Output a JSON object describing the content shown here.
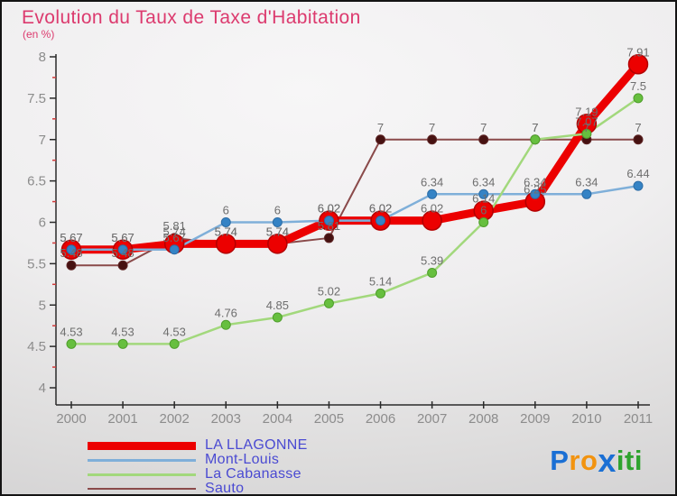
{
  "title": "Evolution du Taux de Taxe d'Habitation",
  "subtitle": "(en %)",
  "chart_data": {
    "type": "line",
    "x": [
      2000,
      2001,
      2002,
      2003,
      2004,
      2005,
      2006,
      2007,
      2008,
      2009,
      2010,
      2011
    ],
    "xlabel": "",
    "ylabel": "en %",
    "ylim": [
      4,
      8
    ],
    "ytick_step_major": 0.5,
    "ytick_step_minor": 0.25,
    "grid": false,
    "legend_position": "bottom-left",
    "series": [
      {
        "name": "LA LLAGONNE",
        "values": [
          5.67,
          5.67,
          5.74,
          5.74,
          5.74,
          6.02,
          6.02,
          6.02,
          6.14,
          6.25,
          7.19,
          7.91
        ],
        "color": "#ec0000",
        "marker_fill": "#ec0000",
        "marker_stroke": "#b30000",
        "line_width": 9,
        "marker_radius": 10.5,
        "swatch_h": 9
      },
      {
        "name": "Mont-Louis",
        "values": [
          5.67,
          5.67,
          5.67,
          6,
          6,
          6.02,
          6.02,
          6.34,
          6.34,
          6.34,
          6.34,
          6.44
        ],
        "color": "#7fafd9",
        "marker_fill": "#3583c5",
        "marker_stroke": "#2d6da6",
        "line_width": 2.5,
        "marker_radius": 5,
        "swatch_h": 3
      },
      {
        "name": "La Cabanasse",
        "values": [
          4.53,
          4.53,
          4.53,
          4.76,
          4.85,
          5.02,
          5.14,
          5.39,
          6,
          7,
          7.07,
          7.5
        ],
        "color": "#a2d87c",
        "marker_fill": "#67bf3f",
        "marker_stroke": "#4f9e2c",
        "line_width": 2.5,
        "marker_radius": 5,
        "swatch_h": 3
      },
      {
        "name": "Sauto",
        "values": [
          5.48,
          5.48,
          5.81,
          5.74,
          5.74,
          5.81,
          7,
          7,
          7,
          7,
          7,
          7
        ],
        "color": "#8a4a4a",
        "marker_fill": "#461111",
        "marker_stroke": "#5e2626",
        "line_width": 2,
        "marker_radius": 5,
        "swatch_h": 2
      }
    ],
    "colors": {
      "axis": "#2a2a2a",
      "minor_tick": "#d03a3a",
      "tick_label": "#8c8c8c",
      "data_label": "#6e6e6e",
      "title": "#dc3a6e",
      "legend_text": "#4a4ad2"
    }
  },
  "logo": {
    "text": "Proxiti",
    "letters": [
      {
        "ch": "P",
        "color": "#1a6fd4",
        "large": false
      },
      {
        "ch": "r",
        "color": "#f2930f",
        "large": false
      },
      {
        "ch": "o",
        "color": "#f2930f",
        "large": false
      },
      {
        "ch": "x",
        "color": "#1a6fd4",
        "large": true
      },
      {
        "ch": "i",
        "color": "#2fa32f",
        "large": false
      },
      {
        "ch": "t",
        "color": "#2fa32f",
        "large": false
      },
      {
        "ch": "i",
        "color": "#2fa32f",
        "large": false
      }
    ]
  }
}
